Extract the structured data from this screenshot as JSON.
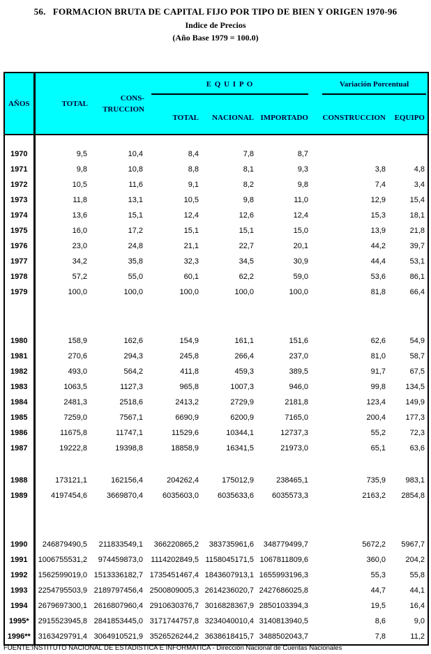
{
  "title": {
    "line1": "56.   FORMACION BRUTA DE CAPITAL FIJO POR TIPO DE BIEN Y ORIGEN 1970-96",
    "line2": "Indice de Precios",
    "line3": "(Año Base 1979 = 100.0)"
  },
  "colors": {
    "header_bg": "#00FFFF",
    "header_text": "#000033",
    "border": "#000000",
    "page_bg": "#FFFFFF"
  },
  "table": {
    "header": {
      "anos": "AÑOS",
      "total": "TOTAL",
      "cons_line1": "CONS-",
      "cons_line2": "TRUCCION",
      "group_equipo": "E Q U I P O",
      "group_variacion": "Variación  Porcentual",
      "equipo_total": "TOTAL",
      "nacional": "NACIONAL",
      "importado": "IMPORTADO",
      "var_construccion": "CONSTRUCCION",
      "var_equipo": "EQUIPO"
    },
    "rows": [
      {
        "year": "1970",
        "total": "9,5",
        "construccion": "10,4",
        "equipo_total": "8,4",
        "nacional": "7,8",
        "importado": "8,7",
        "var_construccion": "",
        "var_equipo": "",
        "gap_before": "top"
      },
      {
        "year": "1971",
        "total": "9,8",
        "construccion": "10,8",
        "equipo_total": "8,8",
        "nacional": "8,1",
        "importado": "9,3",
        "var_construccion": "3,8",
        "var_equipo": "4,8"
      },
      {
        "year": "1972",
        "total": "10,5",
        "construccion": "11,6",
        "equipo_total": "9,1",
        "nacional": "8,2",
        "importado": "9,8",
        "var_construccion": "7,4",
        "var_equipo": "3,4"
      },
      {
        "year": "1973",
        "total": "11,8",
        "construccion": "13,1",
        "equipo_total": "10,5",
        "nacional": "9,8",
        "importado": "11,0",
        "var_construccion": "12,9",
        "var_equipo": "15,4"
      },
      {
        "year": "1974",
        "total": "13,6",
        "construccion": "15,1",
        "equipo_total": "12,4",
        "nacional": "12,6",
        "importado": "12,4",
        "var_construccion": "15,3",
        "var_equipo": "18,1"
      },
      {
        "year": "1975",
        "total": "16,0",
        "construccion": "17,2",
        "equipo_total": "15,1",
        "nacional": "15,1",
        "importado": "15,0",
        "var_construccion": "13,9",
        "var_equipo": "21,8"
      },
      {
        "year": "1976",
        "total": "23,0",
        "construccion": "24,8",
        "equipo_total": "21,1",
        "nacional": "22,7",
        "importado": "20,1",
        "var_construccion": "44,2",
        "var_equipo": "39,7"
      },
      {
        "year": "1977",
        "total": "34,2",
        "construccion": "35,8",
        "equipo_total": "32,3",
        "nacional": "34,5",
        "importado": "30,9",
        "var_construccion": "44,4",
        "var_equipo": "53,1"
      },
      {
        "year": "1978",
        "total": "57,2",
        "construccion": "55,0",
        "equipo_total": "60,1",
        "nacional": "62,2",
        "importado": "59,0",
        "var_construccion": "53,6",
        "var_equipo": "86,1"
      },
      {
        "year": "1979",
        "total": "100,0",
        "construccion": "100,0",
        "equipo_total": "100,0",
        "nacional": "100,0",
        "importado": "100,0",
        "var_construccion": "81,8",
        "var_equipo": "66,4"
      },
      {
        "year": "1980",
        "total": "158,9",
        "construccion": "162,6",
        "equipo_total": "154,9",
        "nacional": "161,1",
        "importado": "151,6",
        "var_construccion": "62,6",
        "var_equipo": "54,9",
        "gap_before": "large"
      },
      {
        "year": "1981",
        "total": "270,6",
        "construccion": "294,3",
        "equipo_total": "245,8",
        "nacional": "266,4",
        "importado": "237,0",
        "var_construccion": "81,0",
        "var_equipo": "58,7"
      },
      {
        "year": "1982",
        "total": "493,0",
        "construccion": "564,2",
        "equipo_total": "411,8",
        "nacional": "459,3",
        "importado": "389,5",
        "var_construccion": "91,7",
        "var_equipo": "67,5"
      },
      {
        "year": "1983",
        "total": "1063,5",
        "construccion": "1127,3",
        "equipo_total": "965,8",
        "nacional": "1007,3",
        "importado": "946,0",
        "var_construccion": "99,8",
        "var_equipo": "134,5"
      },
      {
        "year": "1984",
        "total": "2481,3",
        "construccion": "2518,6",
        "equipo_total": "2413,2",
        "nacional": "2729,9",
        "importado": "2181,8",
        "var_construccion": "123,4",
        "var_equipo": "149,9"
      },
      {
        "year": "1985",
        "total": "7259,0",
        "construccion": "7567,1",
        "equipo_total": "6690,9",
        "nacional": "6200,9",
        "importado": "7165,0",
        "var_construccion": "200,4",
        "var_equipo": "177,3"
      },
      {
        "year": "1986",
        "total": "11675,8",
        "construccion": "11747,1",
        "equipo_total": "11529,6",
        "nacional": "10344,1",
        "importado": "12737,3",
        "var_construccion": "55,2",
        "var_equipo": "72,3"
      },
      {
        "year": "1987",
        "total": "19222,8",
        "construccion": "19398,8",
        "equipo_total": "18858,9",
        "nacional": "16341,5",
        "importado": "21973,0",
        "var_construccion": "65,1",
        "var_equipo": "63,6"
      },
      {
        "year": "1988",
        "total": "173121,1",
        "construccion": "162156,4",
        "equipo_total": "204262,4",
        "nacional": "175012,9",
        "importado": "238465,1",
        "var_construccion": "735,9",
        "var_equipo": "983,1",
        "gap_before": "small"
      },
      {
        "year": "1989",
        "total": "4197454,6",
        "construccion": "3669870,4",
        "equipo_total": "6035603,0",
        "nacional": "6035633,6",
        "importado": "6035573,3",
        "var_construccion": "2163,2",
        "var_equipo": "2854,8"
      },
      {
        "year": "1990",
        "total": "246879490,5",
        "construccion": "211833549,1",
        "equipo_total": "366220865,2",
        "nacional": "383735961,6",
        "importado": "348779499,7",
        "var_construccion": "5672,2",
        "var_equipo": "5967,7",
        "gap_before": "large"
      },
      {
        "year": "1991",
        "total": "1006755531,2",
        "construccion": "974459873,0",
        "equipo_total": "1114202849,5",
        "nacional": "1158045171,5",
        "importado": "1067811809,6",
        "var_construccion": "360,0",
        "var_equipo": "204,2"
      },
      {
        "year": "1992",
        "total": "1562599019,0",
        "construccion": "1513336182,7",
        "equipo_total": "1735451467,4",
        "nacional": "1843607913,1",
        "importado": "1655993196,3",
        "var_construccion": "55,3",
        "var_equipo": "55,8"
      },
      {
        "year": "1993",
        "total": "2254795503,9",
        "construccion": "2189797456,4",
        "equipo_total": "2500809005,3",
        "nacional": "2614236020,7",
        "importado": "2427686025,8",
        "var_construccion": "44,7",
        "var_equipo": "44,1"
      },
      {
        "year": "1994",
        "total": "2679697300,1",
        "construccion": "2616807960,4",
        "equipo_total": "2910630376,7",
        "nacional": "3016828367,9",
        "importado": "2850103394,3",
        "var_construccion": "19,5",
        "var_equipo": "16,4"
      },
      {
        "year": "1995*",
        "total": "2915523945,8",
        "construccion": "2841853445,0",
        "equipo_total": "3171744757,8",
        "nacional": "3234040010,4",
        "importado": "3140813940,5",
        "var_construccion": "8,6",
        "var_equipo": "9,0"
      },
      {
        "year": "1996**",
        "total": "3163429791,4",
        "construccion": "3064910521,9",
        "equipo_total": "3526526244,2",
        "nacional": "3638618415,7",
        "importado": "3488502043,7",
        "var_construccion": "7,8",
        "var_equipo": "11,2"
      }
    ]
  },
  "footer": "FUENTE:INSTITUTO NACIONAL DE ESTADISTICA E INFORMATICA - Dirección Nacional de Cuentas Nacionales"
}
